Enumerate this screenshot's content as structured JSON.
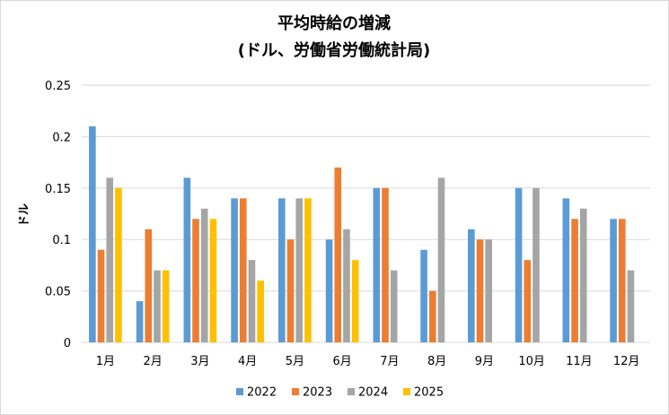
{
  "chart_data": {
    "type": "bar",
    "title": "平均時給の増減",
    "subtitle": "(ドル、労働省労働統計局)",
    "xlabel": "",
    "ylabel": "ドル",
    "ylim": [
      0,
      0.25
    ],
    "yticks": [
      "0",
      "0.05",
      "0.1",
      "0.15",
      "0.2",
      "0.25"
    ],
    "grid": true,
    "legend_position": "bottom",
    "categories": [
      "1月",
      "2月",
      "3月",
      "4月",
      "5月",
      "6月",
      "7月",
      "8月",
      "9月",
      "10月",
      "11月",
      "12月"
    ],
    "series": [
      {
        "name": "2022",
        "color": "#5b9bd5",
        "values": [
          0.21,
          0.04,
          0.16,
          0.14,
          0.14,
          0.1,
          0.15,
          0.09,
          0.11,
          0.15,
          0.14,
          0.12
        ]
      },
      {
        "name": "2023",
        "color": "#ed7d31",
        "values": [
          0.09,
          0.11,
          0.12,
          0.14,
          0.1,
          0.17,
          0.15,
          0.05,
          0.1,
          0.08,
          0.12,
          0.12
        ]
      },
      {
        "name": "2024",
        "color": "#a5a5a5",
        "values": [
          0.16,
          0.07,
          0.13,
          0.08,
          0.14,
          0.11,
          0.07,
          0.16,
          0.1,
          0.15,
          0.13,
          0.07
        ]
      },
      {
        "name": "2025",
        "color": "#ffc000",
        "values": [
          0.15,
          0.07,
          0.12,
          0.06,
          0.14,
          0.08,
          null,
          null,
          null,
          null,
          null,
          null
        ]
      }
    ]
  }
}
